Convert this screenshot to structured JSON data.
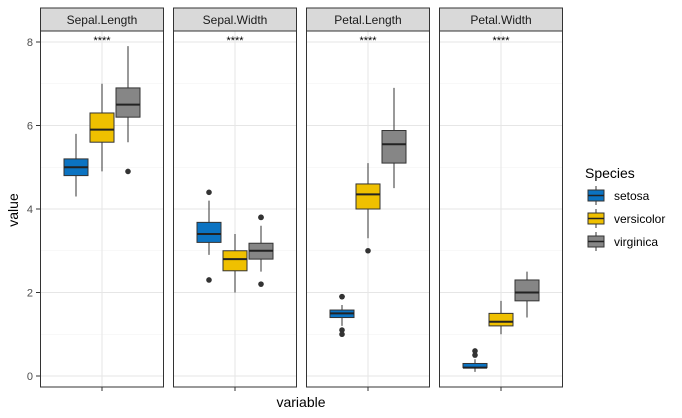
{
  "chart_data": {
    "type": "box",
    "xlabel": "variable",
    "ylabel": "value",
    "ylim": [
      -0.3,
      8.2
    ],
    "yticks": [
      0,
      2,
      4,
      6,
      8
    ],
    "grid": true,
    "legend": {
      "title": "Species",
      "placement": "right",
      "entries": [
        {
          "name": "setosa",
          "color": "#0b73c2"
        },
        {
          "name": "versicolor",
          "color": "#efc000"
        },
        {
          "name": "virginica",
          "color": "#868686"
        }
      ]
    },
    "panels": [
      {
        "label": "Sepal.Length",
        "annotation": "****",
        "boxes": [
          {
            "species": "setosa",
            "min": 4.3,
            "q1": 4.8,
            "median": 5.0,
            "q3": 5.2,
            "max": 5.8,
            "outliers": []
          },
          {
            "species": "versicolor",
            "min": 4.9,
            "q1": 5.6,
            "median": 5.9,
            "q3": 6.3,
            "max": 7.0,
            "outliers": []
          },
          {
            "species": "virginica",
            "min": 5.6,
            "q1": 6.2,
            "median": 6.5,
            "q3": 6.9,
            "max": 7.9,
            "outliers": [
              4.9
            ]
          }
        ]
      },
      {
        "label": "Sepal.Width",
        "annotation": "****",
        "boxes": [
          {
            "species": "setosa",
            "min": 2.9,
            "q1": 3.2,
            "median": 3.4,
            "q3": 3.68,
            "max": 4.2,
            "outliers": [
              4.4,
              2.3
            ]
          },
          {
            "species": "versicolor",
            "min": 2.0,
            "q1": 2.52,
            "median": 2.8,
            "q3": 3.0,
            "max": 3.4,
            "outliers": []
          },
          {
            "species": "virginica",
            "min": 2.5,
            "q1": 2.8,
            "median": 3.0,
            "q3": 3.18,
            "max": 3.6,
            "outliers": [
              3.8,
              3.8,
              2.2
            ]
          }
        ]
      },
      {
        "label": "Petal.Length",
        "annotation": "****",
        "boxes": [
          {
            "species": "setosa",
            "min": 1.2,
            "q1": 1.4,
            "median": 1.5,
            "q3": 1.58,
            "max": 1.7,
            "outliers": [
              1.9,
              1.9,
              1.1,
              1.0
            ]
          },
          {
            "species": "versicolor",
            "min": 3.3,
            "q1": 4.0,
            "median": 4.35,
            "q3": 4.6,
            "max": 5.1,
            "outliers": [
              3.0
            ]
          },
          {
            "species": "virginica",
            "min": 4.5,
            "q1": 5.1,
            "median": 5.55,
            "q3": 5.88,
            "max": 6.9,
            "outliers": []
          }
        ]
      },
      {
        "label": "Petal.Width",
        "annotation": "****",
        "boxes": [
          {
            "species": "setosa",
            "min": 0.1,
            "q1": 0.2,
            "median": 0.2,
            "q3": 0.3,
            "max": 0.4,
            "outliers": [
              0.5,
              0.6
            ]
          },
          {
            "species": "versicolor",
            "min": 1.0,
            "q1": 1.2,
            "median": 1.3,
            "q3": 1.5,
            "max": 1.8,
            "outliers": []
          },
          {
            "species": "virginica",
            "min": 1.4,
            "q1": 1.8,
            "median": 2.0,
            "q3": 2.3,
            "max": 2.5,
            "outliers": []
          }
        ]
      }
    ]
  }
}
